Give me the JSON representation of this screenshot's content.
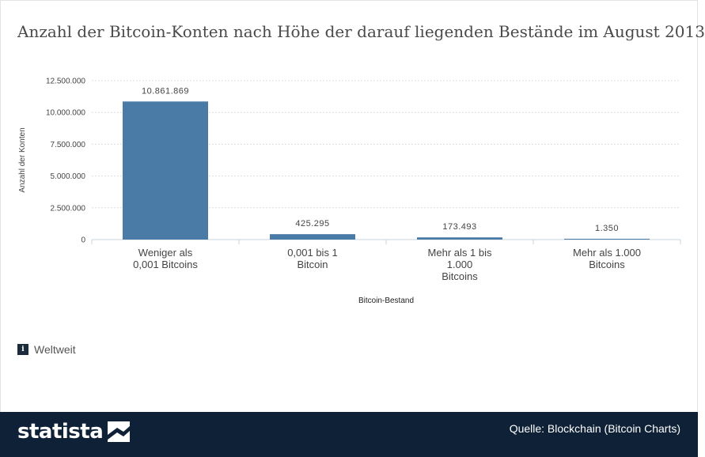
{
  "title": "Anzahl der Bitcoin-Konten nach Höhe der darauf liegenden Bestände im August 2013",
  "chart_data": {
    "type": "bar",
    "categories": [
      [
        "Weniger als",
        "0,001 Bitcoins"
      ],
      [
        "0,001 bis 1",
        "Bitcoin"
      ],
      [
        "Mehr als 1 bis",
        "1.000",
        "Bitcoins"
      ],
      [
        "Mehr als 1.000",
        "Bitcoins"
      ]
    ],
    "values": [
      10861869,
      425295,
      173493,
      1350
    ],
    "value_labels": [
      "10.861.869",
      "425.295",
      "173.493",
      "1.350"
    ],
    "ylabel": "Anzahl der Konten",
    "xlabel": "Bitcoin-Bestand",
    "ylim": [
      0,
      12500000
    ],
    "yticks": [
      0,
      2500000,
      5000000,
      7500000,
      10000000,
      12500000
    ],
    "ytick_labels": [
      "0",
      "2.500.000",
      "5.000.000",
      "7.500.000",
      "10.000.000",
      "12.500.000"
    ],
    "grid": true,
    "bar_color": "#4a7ba6"
  },
  "note": "Weltweit",
  "info_icon_glyph": "i",
  "footer": {
    "brand": "statista",
    "source": "Quelle: Blockchain (Bitcoin Charts)",
    "background": "#0e2136"
  }
}
